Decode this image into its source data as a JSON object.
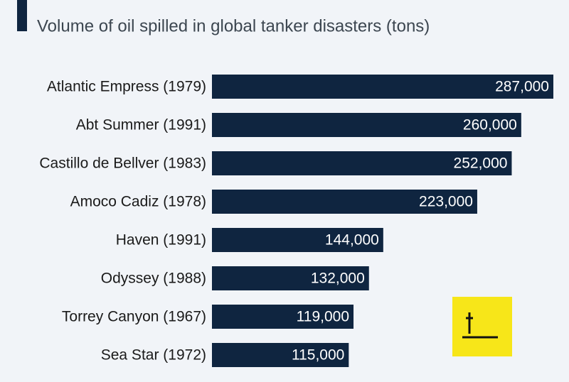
{
  "chart_data": {
    "type": "bar",
    "orientation": "horizontal",
    "subtitle": "Volume of oil spilled in global tanker disasters (tons)",
    "categories": [
      "Atlantic Empress (1979)",
      "Abt Summer (1991)",
      "Castillo de Bellver (1983)",
      "Amoco Cadiz (1978)",
      "Haven (1991)",
      "Odyssey (1988)",
      "Torrey Canyon (1967)",
      "Sea Star (1972)"
    ],
    "values": [
      287000,
      260000,
      252000,
      223000,
      144000,
      132000,
      119000,
      115000
    ],
    "value_labels": [
      "287,000",
      "260,000",
      "252,000",
      "223,000",
      "144,000",
      "132,000",
      "119,000",
      "115,000"
    ],
    "color": "#0f2540"
  }
}
